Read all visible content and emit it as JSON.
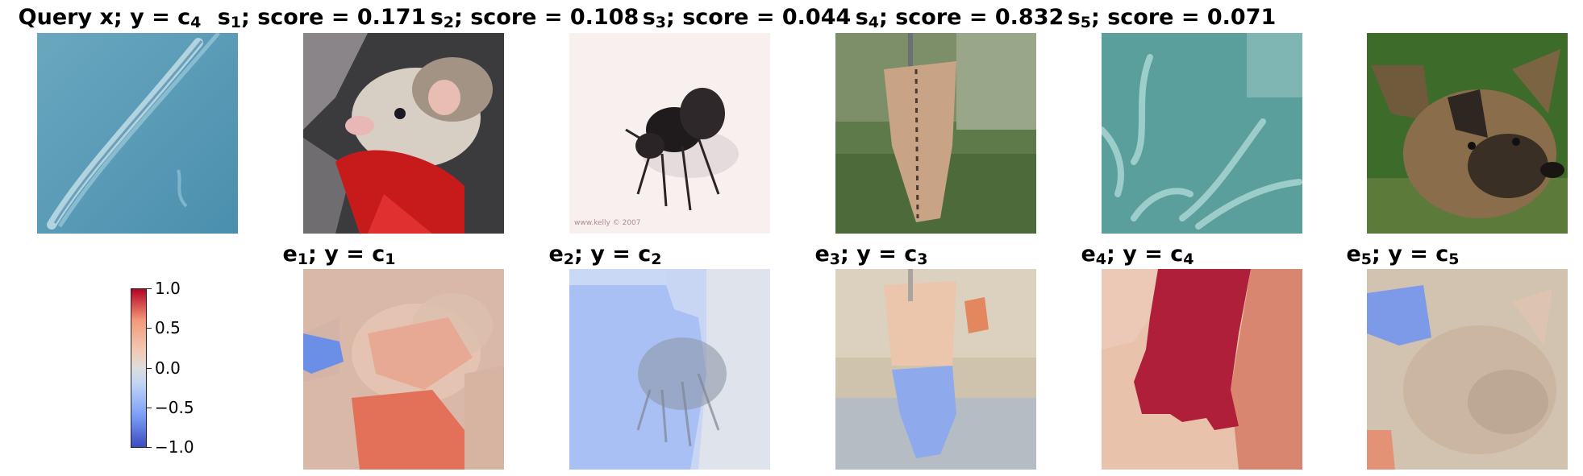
{
  "top_row": [
    {
      "prefix": "Query x; y = c",
      "sub": "4",
      "suffix": ""
    },
    {
      "prefix": "s",
      "sub": "1",
      "suffix": "; score = 0.171"
    },
    {
      "prefix": "s",
      "sub": "2",
      "suffix": "; score = 0.108"
    },
    {
      "prefix": "s",
      "sub": "3",
      "suffix": "; score = 0.044"
    },
    {
      "prefix": "s",
      "sub": "4",
      "suffix": "; score = 0.832"
    },
    {
      "prefix": "s",
      "sub": "5",
      "suffix": "; score = 0.071"
    }
  ],
  "bottom_row": [
    {
      "prefix": "e",
      "sub": "1",
      "mid": "; y = c",
      "sub2": "1"
    },
    {
      "prefix": "e",
      "sub": "2",
      "mid": "; y = c",
      "sub2": "2"
    },
    {
      "prefix": "e",
      "sub": "3",
      "mid": "; y = c",
      "sub2": "3"
    },
    {
      "prefix": "e",
      "sub": "4",
      "mid": "; y = c",
      "sub2": "4"
    },
    {
      "prefix": "e",
      "sub": "5",
      "mid": "; y = c",
      "sub2": "5"
    }
  ],
  "colorbar": {
    "ticks": [
      "1.0",
      "0.5",
      "0.0",
      "−0.5",
      "−1.0"
    ],
    "min": -1.0,
    "max": 1.0,
    "colormap": "coolwarm"
  },
  "colors": {
    "positive_strong": "#b40426",
    "positive_light": "#f49a7b",
    "neutral": "#dddddd",
    "negative_light": "#7b9ff9",
    "negative_strong": "#3b4cc0"
  }
}
